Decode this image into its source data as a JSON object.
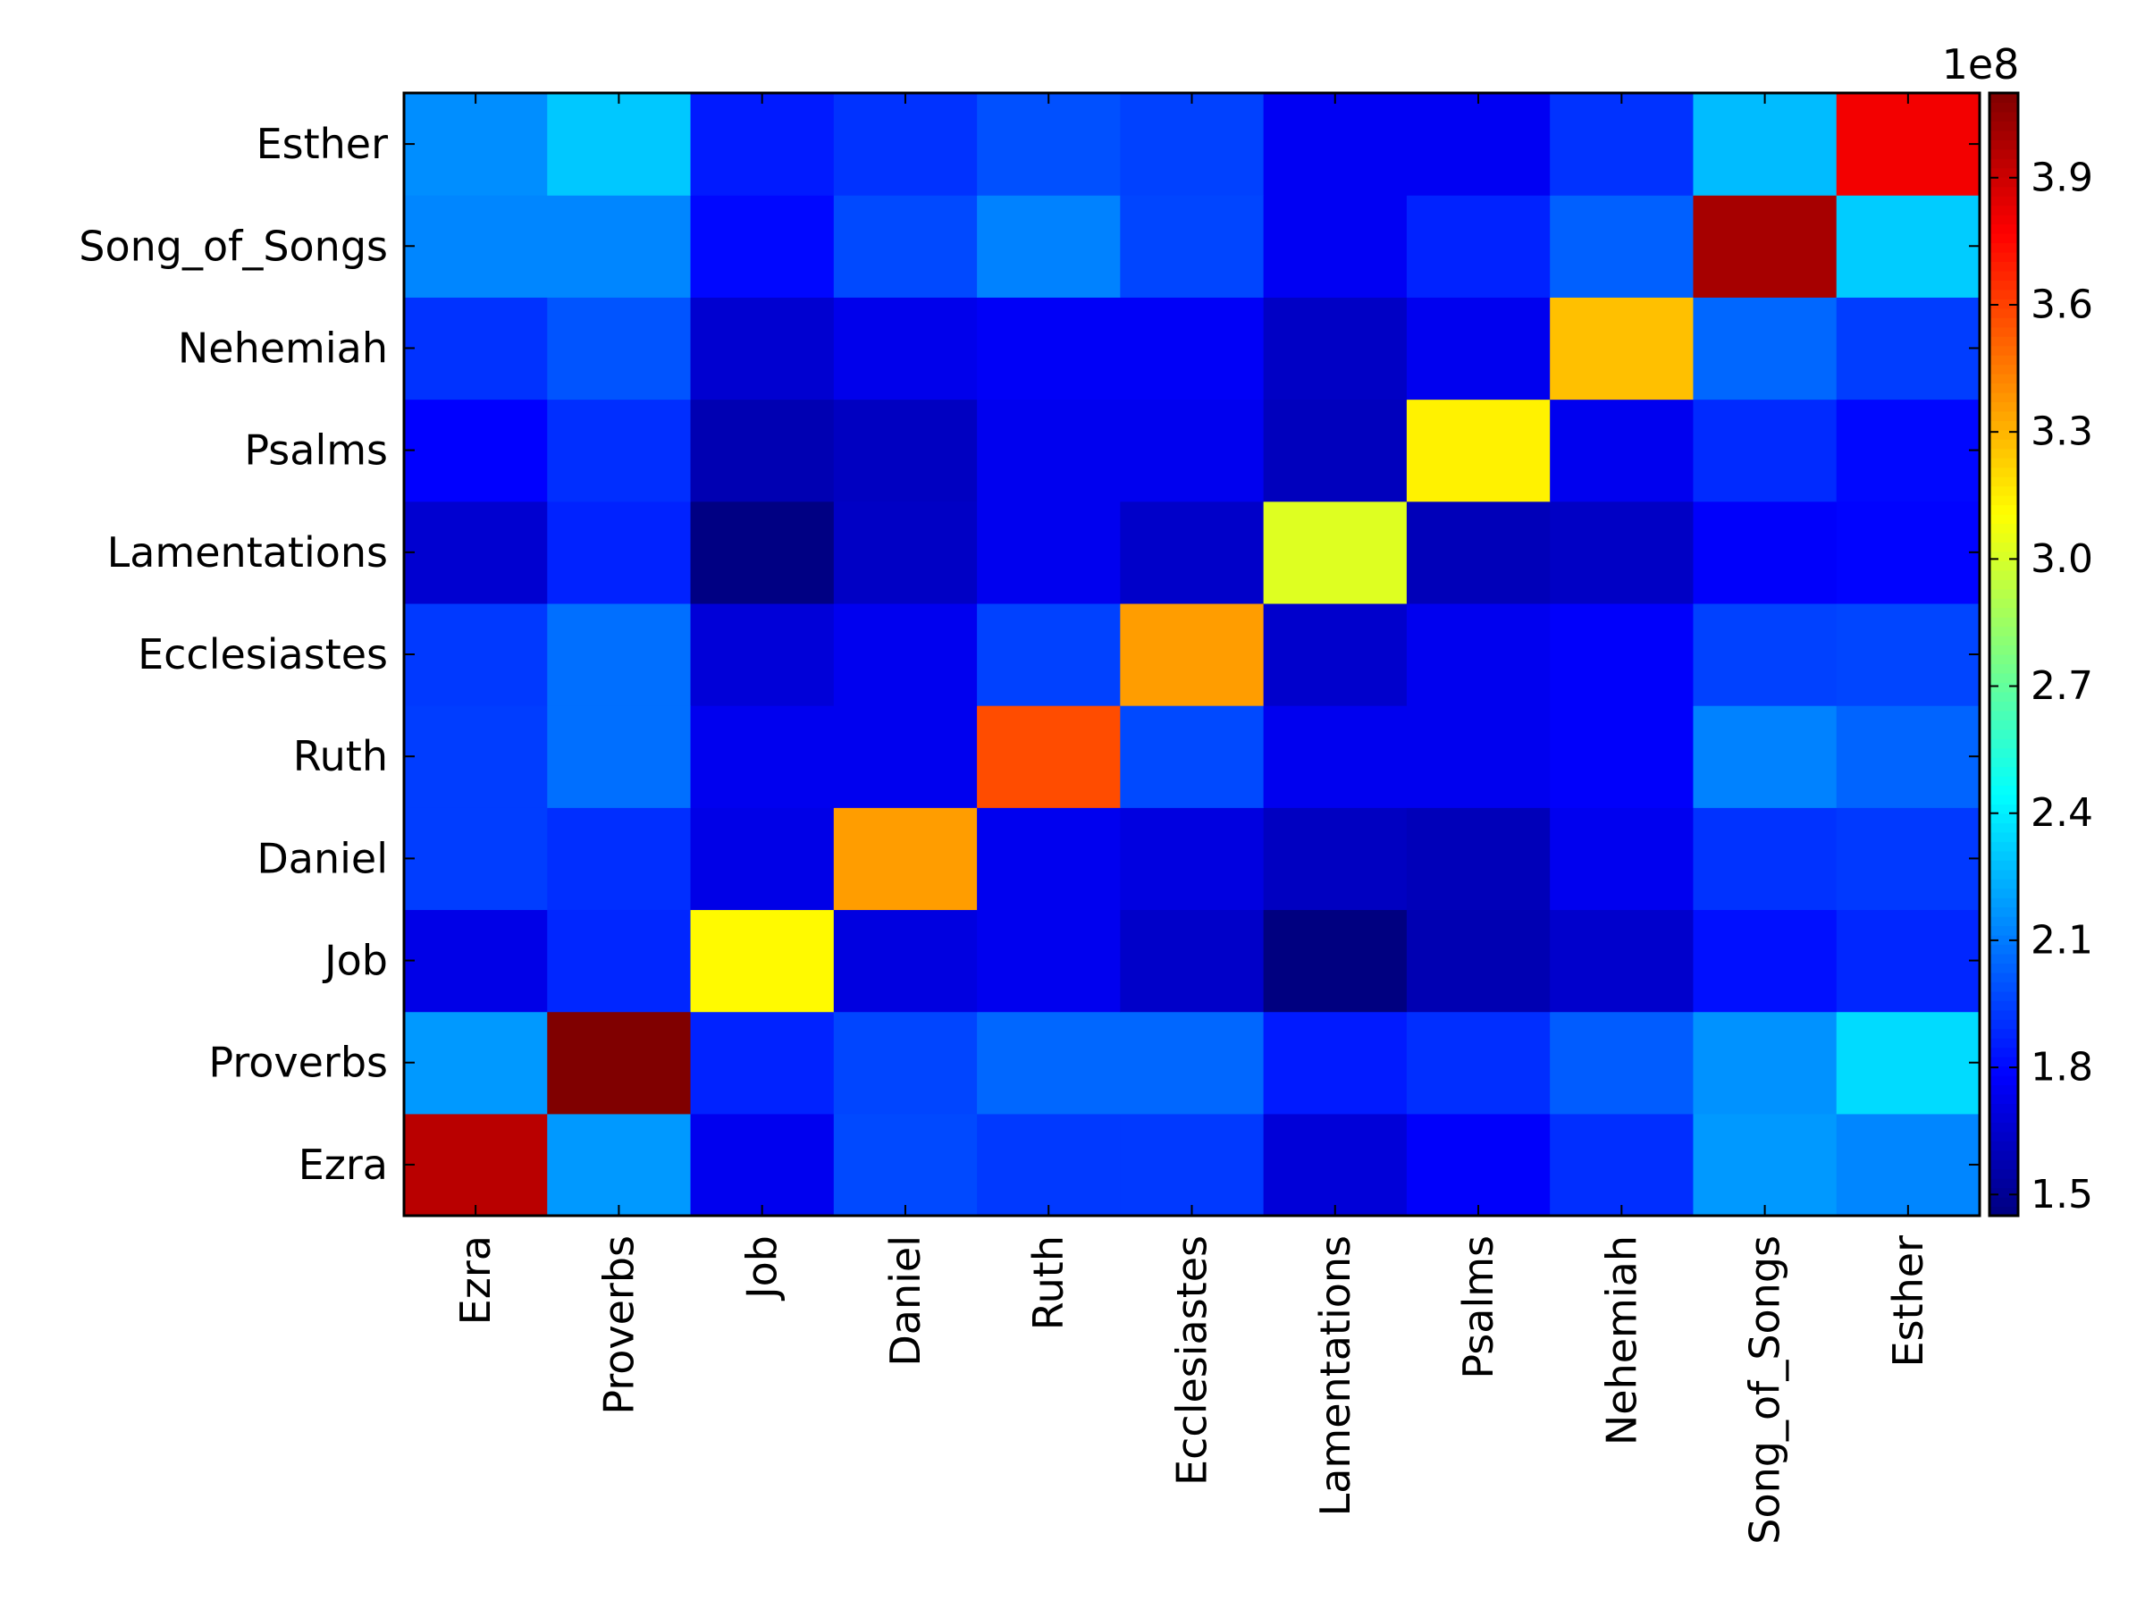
{
  "chart_data": {
    "type": "heatmap",
    "title": "",
    "xlabel": "",
    "ylabel": "",
    "x_categories": [
      "Ezra",
      "Proverbs",
      "Job",
      "Daniel",
      "Ruth",
      "Ecclesiastes",
      "Lamentations",
      "Psalms",
      "Nehemiah",
      "Song_of_Songs",
      "Esther"
    ],
    "y_categories": [
      "Ezra",
      "Proverbs",
      "Job",
      "Daniel",
      "Ruth",
      "Ecclesiastes",
      "Lamentations",
      "Psalms",
      "Nehemiah",
      "Song_of_Songs",
      "Esther"
    ],
    "values_scale": 100000000,
    "values": [
      [
        3.95,
        2.18,
        1.74,
        1.97,
        1.93,
        1.93,
        1.68,
        1.77,
        1.9,
        2.18,
        2.13
      ],
      [
        2.18,
        4.1,
        1.87,
        1.96,
        2.05,
        2.05,
        1.85,
        1.9,
        2.02,
        2.16,
        2.35
      ],
      [
        1.72,
        1.88,
        3.12,
        1.7,
        1.74,
        1.64,
        1.45,
        1.58,
        1.65,
        1.82,
        1.88
      ],
      [
        1.94,
        1.9,
        1.72,
        3.36,
        1.74,
        1.7,
        1.62,
        1.6,
        1.74,
        1.91,
        1.93
      ],
      [
        1.94,
        2.07,
        1.74,
        1.74,
        3.57,
        1.97,
        1.74,
        1.74,
        1.77,
        2.12,
        2.04
      ],
      [
        1.93,
        2.07,
        1.68,
        1.74,
        1.95,
        3.36,
        1.65,
        1.74,
        1.77,
        1.95,
        1.96
      ],
      [
        1.66,
        1.87,
        1.46,
        1.63,
        1.74,
        1.64,
        3.02,
        1.6,
        1.63,
        1.77,
        1.79
      ],
      [
        1.78,
        1.9,
        1.58,
        1.62,
        1.74,
        1.74,
        1.61,
        3.14,
        1.74,
        1.89,
        1.8
      ],
      [
        1.91,
        2.0,
        1.66,
        1.73,
        1.76,
        1.76,
        1.63,
        1.74,
        3.27,
        2.05,
        1.94
      ],
      [
        2.13,
        2.13,
        1.8,
        1.97,
        2.12,
        1.96,
        1.75,
        1.87,
        2.03,
        4.0,
        2.31
      ],
      [
        2.15,
        2.3,
        1.85,
        1.91,
        1.99,
        1.95,
        1.75,
        1.75,
        1.91,
        2.27,
        3.8
      ]
    ],
    "zlim": [
      1.45,
      4.1
    ],
    "colormap": "jet",
    "colorbar": {
      "ticks": [
        1.5,
        1.8,
        2.1,
        2.4,
        2.7,
        3.0,
        3.3,
        3.6,
        3.9
      ],
      "tick_labels": [
        "1.5",
        "1.8",
        "2.1",
        "2.4",
        "2.7",
        "3.0",
        "3.3",
        "3.6",
        "3.9"
      ],
      "exponent_label": "1e8"
    },
    "grid": false
  }
}
